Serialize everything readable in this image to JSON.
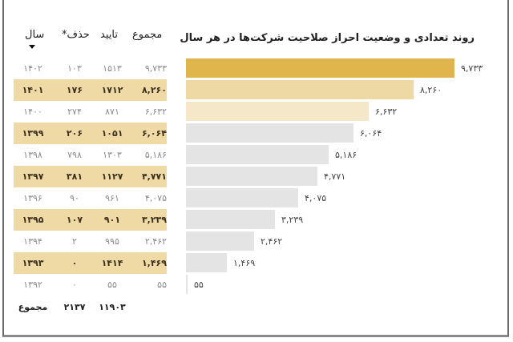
{
  "table": {
    "headers": {
      "year": "سال",
      "deleted": "حذف*",
      "approved": "تایید",
      "total": "مجموع"
    },
    "sort_indicator": "sort-desc",
    "rows": [
      {
        "year": "۱۴۰۲",
        "deleted": "۱۰۳",
        "approved": "۱۵۱۳",
        "total": "۹,۷۳۳",
        "highlight": false
      },
      {
        "year": "۱۴۰۱",
        "deleted": "۱۷۶",
        "approved": "۱۷۱۲",
        "total": "۸,۲۶۰",
        "highlight": true
      },
      {
        "year": "۱۴۰۰",
        "deleted": "۲۷۴",
        "approved": "۸۷۱",
        "total": "۶,۶۳۲",
        "highlight": false
      },
      {
        "year": "۱۳۹۹",
        "deleted": "۲۰۶",
        "approved": "۱۰۵۱",
        "total": "۶,۰۶۴",
        "highlight": true
      },
      {
        "year": "۱۳۹۸",
        "deleted": "۷۹۸",
        "approved": "۱۳۰۳",
        "total": "۵,۱۸۶",
        "highlight": false
      },
      {
        "year": "۱۳۹۷",
        "deleted": "۳۸۱",
        "approved": "۱۱۲۷",
        "total": "۴,۷۷۱",
        "highlight": true
      },
      {
        "year": "۱۳۹۶",
        "deleted": "۹۰",
        "approved": "۹۶۱",
        "total": "۴,۰۷۵",
        "highlight": false
      },
      {
        "year": "۱۳۹۵",
        "deleted": "۱۰۷",
        "approved": "۹۰۱",
        "total": "۳,۲۳۹",
        "highlight": true
      },
      {
        "year": "۱۳۹۴",
        "deleted": "۲",
        "approved": "۹۹۵",
        "total": "۲,۴۶۲",
        "highlight": false
      },
      {
        "year": "۱۳۹۳",
        "deleted": "۰",
        "approved": "۱۴۱۴",
        "total": "۱,۴۶۹",
        "highlight": true
      },
      {
        "year": "۱۳۹۲",
        "deleted": "۰",
        "approved": "۵۵",
        "total": "۵۵",
        "highlight": false
      }
    ],
    "footer": {
      "label": "مجموع",
      "deleted": "۲۱۳۷",
      "approved": "۱۱۹۰۳",
      "total": ""
    }
  },
  "colors": {
    "bar_highlight": "#e0b54c",
    "bar_second": "#eed9a4",
    "bar_third": "#f5e8c8",
    "bar_default": "#e4e4e4",
    "row_highlight": "#efd9a4"
  },
  "chart_data": {
    "type": "bar",
    "orientation": "horizontal",
    "title": "روند تعدادی و وضعیت احراز صلاحیت شرکت‌ها در هر سال",
    "categories": [
      "1402",
      "1401",
      "1400",
      "1399",
      "1398",
      "1397",
      "1396",
      "1395",
      "1394",
      "1393",
      "1392"
    ],
    "values": [
      9733,
      8260,
      6632,
      6064,
      5186,
      4771,
      4075,
      3239,
      2462,
      1469,
      55
    ],
    "value_labels": [
      "۹,۷۳۳",
      "۸,۲۶۰",
      "۶,۶۳۲",
      "۶,۰۶۴",
      "۵,۱۸۶",
      "۴,۷۷۱",
      "۴,۰۷۵",
      "۳,۲۳۹",
      "۲,۴۶۲",
      "۱,۴۶۹",
      "۵۵"
    ],
    "bar_colors": [
      "#e0b54c",
      "#eed9a4",
      "#f5e8c8",
      "#e4e4e4",
      "#e4e4e4",
      "#e4e4e4",
      "#e4e4e4",
      "#e4e4e4",
      "#e4e4e4",
      "#e4e4e4",
      "#e4e4e4"
    ],
    "xlabel": "",
    "ylabel": "",
    "xlim": [
      0,
      9733
    ],
    "grid": false,
    "legend": null
  }
}
